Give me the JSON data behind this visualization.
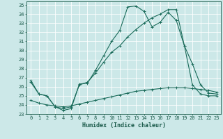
{
  "xlabel": "Humidex (Indice chaleur)",
  "bg_color": "#cce8e8",
  "grid_color": "#ffffff",
  "line_color": "#1a6b5a",
  "xlim": [
    -0.5,
    23.5
  ],
  "ylim": [
    23,
    35.4
  ],
  "xticks": [
    0,
    1,
    2,
    3,
    4,
    5,
    6,
    7,
    8,
    9,
    10,
    11,
    12,
    13,
    14,
    15,
    16,
    17,
    18,
    19,
    20,
    21,
    22,
    23
  ],
  "yticks": [
    23,
    24,
    25,
    26,
    27,
    28,
    29,
    30,
    31,
    32,
    33,
    34,
    35
  ],
  "line1_x": [
    0,
    1,
    2,
    3,
    4,
    5,
    6,
    7,
    8,
    9,
    10,
    11,
    12,
    13,
    14,
    15,
    16,
    17,
    18,
    19,
    20,
    21,
    22,
    23
  ],
  "line1_y": [
    26.7,
    25.2,
    25.0,
    23.8,
    23.4,
    23.6,
    26.3,
    26.4,
    27.8,
    29.4,
    31.0,
    32.2,
    34.8,
    34.9,
    34.3,
    32.6,
    33.1,
    34.2,
    33.3,
    30.5,
    28.5,
    26.2,
    25.3,
    25.2
  ],
  "line2_x": [
    0,
    1,
    2,
    3,
    4,
    5,
    6,
    7,
    8,
    9,
    10,
    11,
    12,
    13,
    14,
    15,
    16,
    17,
    18,
    19,
    20,
    21,
    22,
    23
  ],
  "line2_y": [
    26.5,
    25.2,
    25.0,
    23.8,
    23.6,
    23.8,
    26.2,
    26.5,
    27.5,
    28.7,
    29.8,
    30.5,
    31.5,
    32.3,
    33.0,
    33.6,
    34.0,
    34.5,
    34.5,
    30.5,
    26.2,
    25.2,
    25.0,
    25.0
  ],
  "line3_x": [
    0,
    1,
    2,
    3,
    4,
    5,
    6,
    7,
    8,
    9,
    10,
    11,
    12,
    13,
    14,
    15,
    16,
    17,
    18,
    19,
    20,
    21,
    22,
    23
  ],
  "line3_y": [
    24.5,
    24.2,
    24.0,
    23.9,
    23.8,
    23.9,
    24.1,
    24.3,
    24.5,
    24.7,
    24.9,
    25.1,
    25.3,
    25.5,
    25.6,
    25.7,
    25.8,
    25.9,
    25.9,
    25.9,
    25.8,
    25.7,
    25.6,
    25.4
  ],
  "font_size_tick": 5,
  "font_size_xlabel": 6
}
